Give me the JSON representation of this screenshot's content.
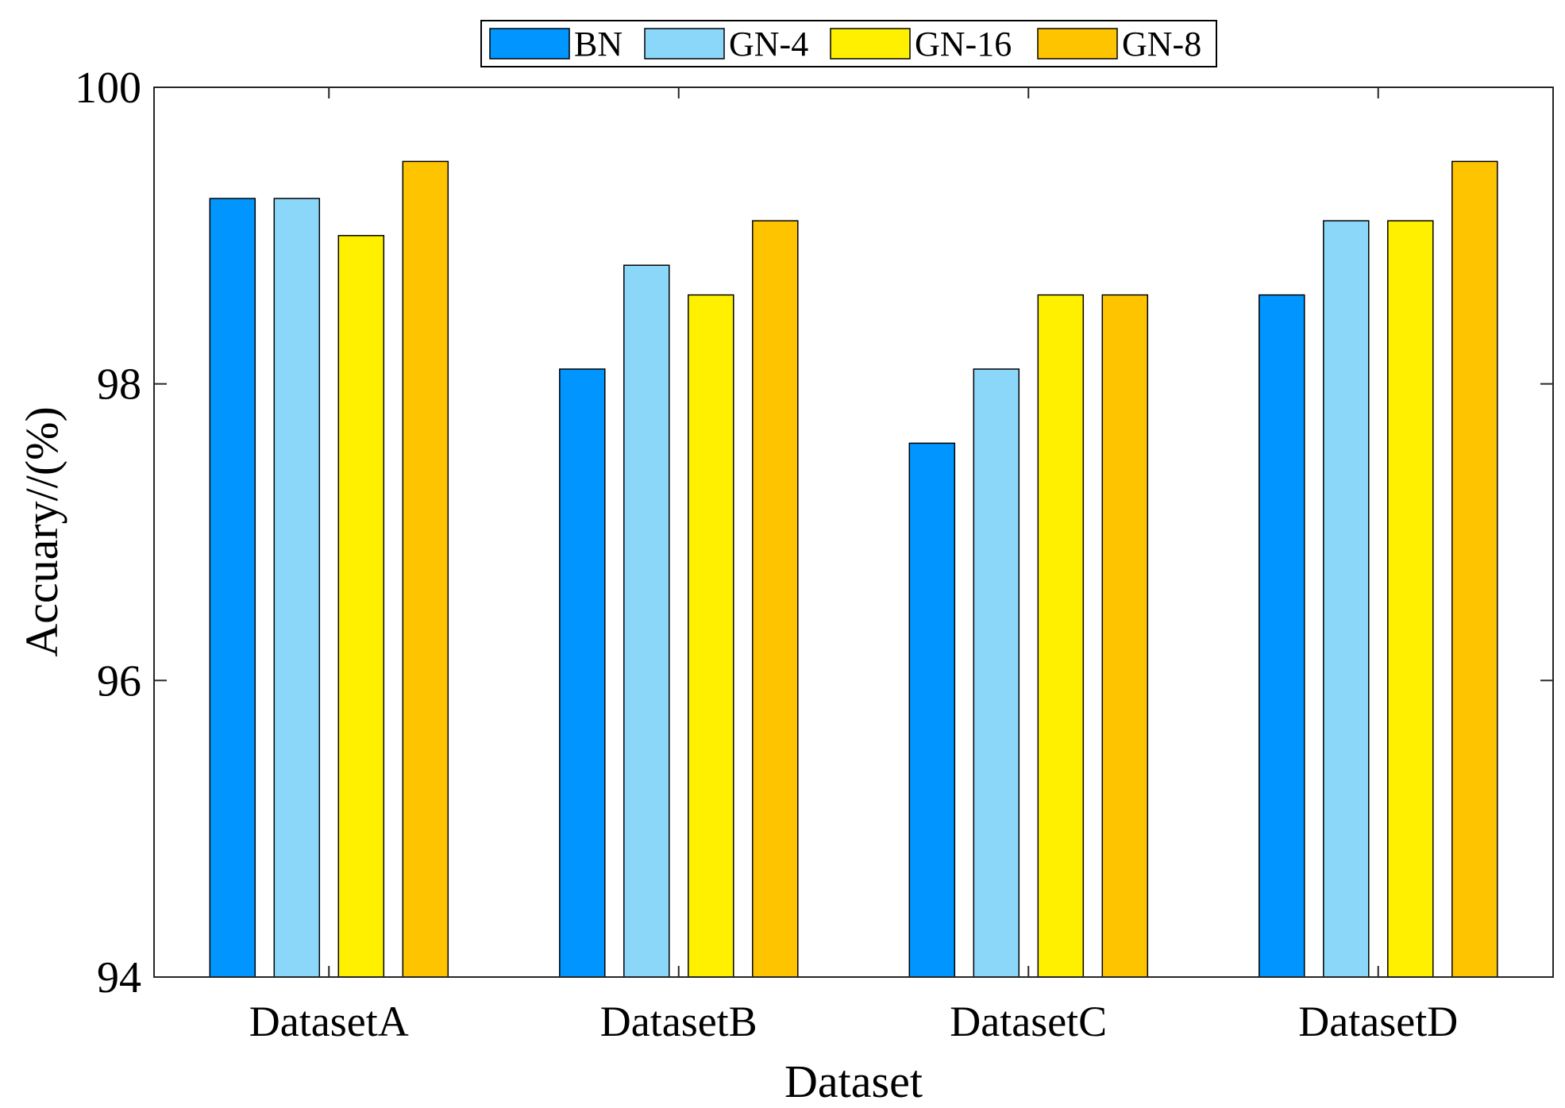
{
  "chart_data": {
    "type": "bar",
    "title": "",
    "xlabel": "Dataset",
    "ylabel": "Accuary//(%)",
    "ylim": [
      94,
      100
    ],
    "yticks": [
      94,
      96,
      98,
      100
    ],
    "grid": false,
    "legend_position": "top-center",
    "categories": [
      "DatasetA",
      "DatasetB",
      "DatasetC",
      "DatasetD"
    ],
    "series": [
      {
        "name": "BN",
        "color": "#0095FF",
        "values": [
          99.25,
          98.1,
          97.6,
          98.6
        ]
      },
      {
        "name": "GN-4",
        "color": "#8AD7FA",
        "values": [
          99.25,
          98.8,
          98.1,
          99.1
        ]
      },
      {
        "name": "GN-16",
        "color": "#FFF000",
        "values": [
          99.0,
          98.6,
          98.6,
          99.1
        ]
      },
      {
        "name": "GN-8",
        "color": "#FFC400",
        "values": [
          99.5,
          99.1,
          98.6,
          99.5
        ]
      }
    ]
  }
}
